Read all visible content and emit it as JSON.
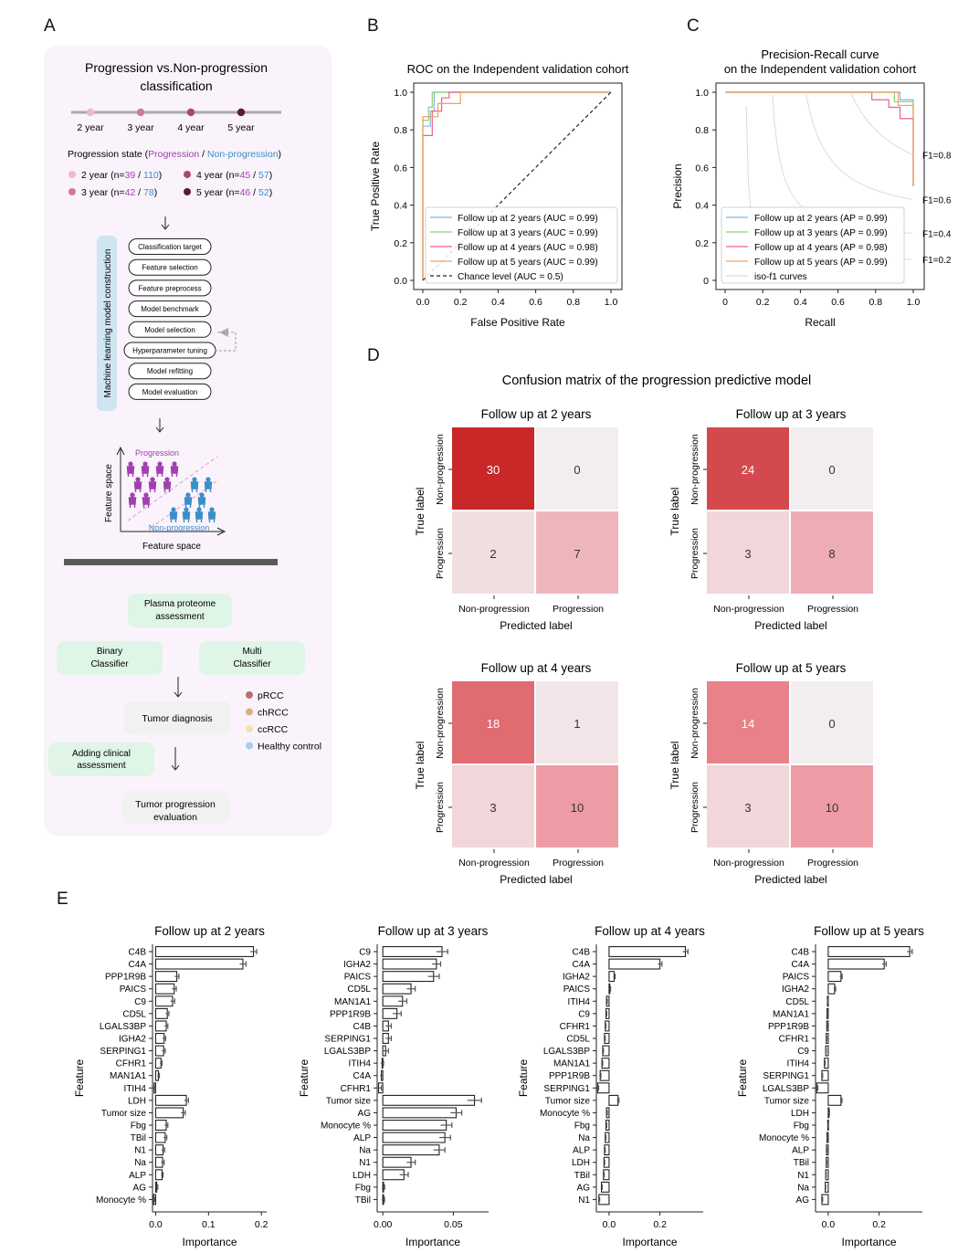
{
  "panel_labels": {
    "a": "A",
    "b": "B",
    "c": "C",
    "d": "D",
    "e": "E"
  },
  "panel_a": {
    "title_line1": "Progression vs.Non-progression",
    "title_line2": "classification",
    "timeline": [
      "2 year",
      "3 year",
      "4 year",
      "5 year"
    ],
    "timeline_colors": [
      "#f2b8c8",
      "#d17a98",
      "#a8496a",
      "#5c1a32"
    ],
    "state_prefix": "Progression state (",
    "state_prog": "Progression",
    "state_sep": " / ",
    "state_nonprog": "Non-progression",
    "state_suffix": ")",
    "prog_color": "#a040b0",
    "nonprog_color": "#3a8fc8",
    "counts": [
      {
        "label": "2 year (n=",
        "prog": "39",
        "nonprog": "110"
      },
      {
        "label": "3 year (n=",
        "prog": "42",
        "nonprog": "78"
      },
      {
        "label": "4 year (n=",
        "prog": "45",
        "nonprog": "57"
      },
      {
        "label": "5 year (n=",
        "prog": "46",
        "nonprog": "52"
      }
    ],
    "ml_label": "Machine learning model construction",
    "steps": [
      "Classification target",
      "Feature selection",
      "Feature preprocess",
      "Model benchmark",
      "Model selection",
      "Hyperparameter tuning",
      "Model refitting",
      "Model evaluation"
    ],
    "feature_space_y": "Feature space",
    "feature_space_x": "Feature space",
    "progression_label": "Progression",
    "nonprogression_label": "Non-progression",
    "flow": {
      "plasma": [
        "Plasma proteome",
        "assessment"
      ],
      "binary": [
        "Binary",
        "Classifier"
      ],
      "multi": [
        "Multi",
        "Classifier"
      ],
      "diagnosis": "Tumor diagnosis",
      "clinical": [
        "Adding clinical",
        "assessment"
      ],
      "evaluation": [
        "Tumor progression",
        "evaluation"
      ]
    },
    "legend": [
      {
        "label": "pRCC",
        "color": "#b87078"
      },
      {
        "label": "chRCC",
        "color": "#d8b088"
      },
      {
        "label": "ccRCC",
        "color": "#f4e0b0"
      },
      {
        "label": "Healthy control",
        "color": "#a8d0e8"
      }
    ]
  },
  "chart_data": [
    {
      "panel": "B",
      "type": "line",
      "title": "ROC on the Independent validation cohort",
      "xlabel": "False Positive Rate",
      "ylabel": "True Positive Rate",
      "xlim": [
        0,
        1
      ],
      "ylim": [
        0,
        1
      ],
      "ticks": [
        "0.0",
        "0.2",
        "0.4",
        "0.6",
        "0.8",
        "1.0"
      ],
      "legend_position": "lower right",
      "series": [
        {
          "name": "Follow up at 2 years (AUC = 0.99)",
          "color": "#7cb8e0",
          "points": [
            [
              0,
              0
            ],
            [
              0,
              0.82
            ],
            [
              0.04,
              0.82
            ],
            [
              0.04,
              0.9
            ],
            [
              0.06,
              0.9
            ],
            [
              0.06,
              1
            ],
            [
              1,
              1
            ]
          ]
        },
        {
          "name": "Follow up at 3 years (AUC = 0.99)",
          "color": "#90d070",
          "points": [
            [
              0,
              0
            ],
            [
              0,
              0.85
            ],
            [
              0.03,
              0.85
            ],
            [
              0.03,
              0.92
            ],
            [
              0.05,
              0.92
            ],
            [
              0.05,
              1
            ],
            [
              1,
              1
            ]
          ]
        },
        {
          "name": "Follow up at 4 years (AUC = 0.98)",
          "color": "#f06080",
          "points": [
            [
              0,
              0
            ],
            [
              0,
              0.77
            ],
            [
              0.05,
              0.77
            ],
            [
              0.05,
              0.9
            ],
            [
              0.1,
              0.9
            ],
            [
              0.1,
              0.97
            ],
            [
              0.14,
              0.97
            ],
            [
              0.14,
              1
            ],
            [
              1,
              1
            ]
          ]
        },
        {
          "name": "Follow up at 5 years (AUC = 0.99)",
          "color": "#f4a060",
          "points": [
            [
              0,
              0
            ],
            [
              0,
              0.87
            ],
            [
              0.08,
              0.87
            ],
            [
              0.08,
              0.94
            ],
            [
              0.2,
              0.94
            ],
            [
              0.2,
              1
            ],
            [
              1,
              1
            ]
          ]
        },
        {
          "name": "Chance level (AUC = 0.5)",
          "color": "#222222",
          "dashed": true,
          "points": [
            [
              0,
              0
            ],
            [
              1,
              1
            ]
          ]
        }
      ]
    },
    {
      "panel": "C",
      "type": "line",
      "title_line1": "Precision-Recall curve",
      "title_line2": "on the Independent validation cohort",
      "xlabel": "Recall",
      "ylabel": "Precision",
      "xlim": [
        0,
        1
      ],
      "ylim": [
        0,
        1
      ],
      "ticks": [
        "0",
        "0.2",
        "0.4",
        "0.6",
        "0.8",
        "1.0"
      ],
      "yticks": [
        "0",
        "0.2",
        "0.4",
        "0.6",
        "0.8",
        "1.0"
      ],
      "iso_f1": [
        0.2,
        0.4,
        0.6,
        0.8
      ],
      "iso_labels": [
        "F1=0.2",
        "F1=0.4",
        "F1=0.6",
        "F1=0.8"
      ],
      "legend_position": "lower right",
      "series": [
        {
          "name": "Follow up at 2 years (AP = 0.99)",
          "color": "#7cb8e0",
          "points": [
            [
              0,
              1
            ],
            [
              0.93,
              1
            ],
            [
              0.93,
              0.96
            ],
            [
              1,
              0.96
            ],
            [
              1,
              0.5
            ]
          ]
        },
        {
          "name": "Follow up at 3 years (AP = 0.99)",
          "color": "#90d070",
          "points": [
            [
              0,
              1
            ],
            [
              0.9,
              1
            ],
            [
              0.9,
              0.95
            ],
            [
              1,
              0.95
            ],
            [
              1,
              0.5
            ]
          ]
        },
        {
          "name": "Follow up at 4 years (AP = 0.98)",
          "color": "#f06080",
          "points": [
            [
              0,
              1
            ],
            [
              0.78,
              1
            ],
            [
              0.78,
              0.96
            ],
            [
              0.87,
              0.96
            ],
            [
              0.87,
              0.92
            ],
            [
              0.93,
              0.92
            ],
            [
              0.93,
              0.86
            ],
            [
              1,
              0.86
            ],
            [
              1,
              0.5
            ]
          ]
        },
        {
          "name": "Follow up at 5 years (AP = 0.99)",
          "color": "#f4a060",
          "points": [
            [
              0,
              1
            ],
            [
              0.92,
              1
            ],
            [
              0.92,
              0.93
            ],
            [
              1,
              0.93
            ],
            [
              1,
              0.5
            ]
          ]
        },
        {
          "name": "iso-f1 curves",
          "color": "#d8d8d8"
        }
      ]
    },
    {
      "panel": "D",
      "type": "heatmap",
      "title": "Confusion matrix of the progression predictive model",
      "xlabel": "Predicted label",
      "ylabel": "True label",
      "classes": [
        "Non-progression",
        "Progression"
      ],
      "matrices": [
        {
          "title": "Follow up at 2 years",
          "values": [
            [
              30,
              0
            ],
            [
              2,
              7
            ]
          ]
        },
        {
          "title": "Follow up at 3 years",
          "values": [
            [
              24,
              0
            ],
            [
              3,
              8
            ]
          ]
        },
        {
          "title": "Follow up at 4 years",
          "values": [
            [
              18,
              1
            ],
            [
              3,
              10
            ]
          ]
        },
        {
          "title": "Follow up at 5 years",
          "values": [
            [
              14,
              0
            ],
            [
              3,
              10
            ]
          ]
        }
      ]
    },
    {
      "panel": "E",
      "type": "bar",
      "xlabel": "Importance",
      "ylabel": "Feature",
      "subplots": [
        {
          "title": "Follow up at 2 years",
          "xlim": [
            -0.006,
            0.21
          ],
          "xticks": [
            0,
            0.1,
            0.2
          ],
          "xtick_labels": [
            "0.0",
            "0.1",
            "0.2"
          ],
          "features": [
            "C4B",
            "C4A",
            "PPP1R9B",
            "PAICS",
            "C9",
            "CD5L",
            "LGALS3BP",
            "IGHA2",
            "SERPING1",
            "CFHR1",
            "MAN1A1",
            "ITIH4",
            "LDH",
            "Tumor size",
            "Fbg",
            "TBil",
            "N1",
            "Na",
            "ALP",
            "AG",
            "Monocyte %"
          ],
          "values": [
            0.185,
            0.165,
            0.04,
            0.035,
            0.032,
            0.022,
            0.02,
            0.016,
            0.015,
            0.01,
            0.005,
            -0.003,
            0.058,
            0.052,
            0.02,
            0.018,
            0.014,
            0.013,
            0.012,
            0.002,
            -0.004
          ],
          "errors": [
            0.006,
            0.006,
            0.004,
            0.004,
            0.004,
            0.003,
            0.003,
            0.003,
            0.003,
            0.002,
            0.002,
            0.002,
            0.004,
            0.004,
            0.003,
            0.003,
            0.003,
            0.003,
            0.002,
            0.002,
            0.002
          ]
        },
        {
          "title": "Follow up at 3 years",
          "xlim": [
            -0.004,
            0.075
          ],
          "xticks": [
            0,
            0.05
          ],
          "xtick_labels": [
            "0.00",
            "0.05"
          ],
          "features": [
            "C9",
            "IGHA2",
            "PAICS",
            "CD5L",
            "MAN1A1",
            "PPP1R9B",
            "C4B",
            "SERPING1",
            "LGALS3BP",
            "ITIH4",
            "C4A",
            "CFHR1",
            "Tumor size",
            "AG",
            "Monocyte %",
            "ALP",
            "Na",
            "N1",
            "LDH",
            "Fbg",
            "TBil"
          ],
          "values": [
            0.042,
            0.038,
            0.036,
            0.02,
            0.014,
            0.01,
            0.004,
            0.004,
            0.002,
            -0.0005,
            -0.001,
            -0.003,
            0.065,
            0.052,
            0.045,
            0.044,
            0.04,
            0.02,
            0.015,
            0.0003,
            0.0002
          ],
          "errors": [
            0.004,
            0.003,
            0.004,
            0.003,
            0.003,
            0.003,
            0.002,
            0.002,
            0.002,
            0.001,
            0.001,
            0.002,
            0.005,
            0.004,
            0.004,
            0.004,
            0.004,
            0.003,
            0.003,
            0.001,
            0.001
          ]
        },
        {
          "title": "Follow up at 4 years",
          "xlim": [
            -0.05,
            0.37
          ],
          "xticks": [
            0,
            0.2
          ],
          "xtick_labels": [
            "0.0",
            "0.2"
          ],
          "features": [
            "C4B",
            "C4A",
            "IGHA2",
            "PAICS",
            "ITIH4",
            "C9",
            "CFHR1",
            "CD5L",
            "LGALS3BP",
            "MAN1A1",
            "PPP1R9B",
            "SERPING1",
            "Tumor size",
            "Monocyte %",
            "Fbg",
            "Na",
            "ALP",
            "LDH",
            "TBil",
            "AG",
            "N1"
          ],
          "values": [
            0.3,
            0.2,
            0.02,
            0.003,
            -0.01,
            -0.012,
            -0.015,
            -0.018,
            -0.025,
            -0.028,
            -0.035,
            -0.045,
            0.035,
            -0.01,
            -0.012,
            -0.015,
            -0.018,
            -0.02,
            -0.022,
            -0.03,
            -0.04
          ],
          "errors": [
            0.01,
            0.008,
            0.004,
            0.003,
            0.003,
            0.003,
            0.003,
            0.003,
            0.003,
            0.003,
            0.003,
            0.004,
            0.004,
            0.003,
            0.003,
            0.003,
            0.003,
            0.003,
            0.003,
            0.003,
            0.003
          ]
        },
        {
          "title": "Follow up at 5 years",
          "xlim": [
            -0.05,
            0.37
          ],
          "xticks": [
            0,
            0.2
          ],
          "xtick_labels": [
            "0.0",
            "0.2"
          ],
          "features": [
            "C4B",
            "C4A",
            "PAICS",
            "IGHA2",
            "CD5L",
            "MAN1A1",
            "PPP1R9B",
            "CFHR1",
            "C9",
            "ITIH4",
            "SERPING1",
            "LGALS3BP",
            "Tumor size",
            "LDH",
            "Fbg",
            "Monocyte %",
            "ALP",
            "TBil",
            "N1",
            "Na",
            "AG"
          ],
          "values": [
            0.32,
            0.22,
            0.05,
            0.025,
            -0.003,
            -0.005,
            -0.006,
            -0.008,
            -0.01,
            -0.015,
            -0.025,
            -0.045,
            0.05,
            0.003,
            -0.002,
            -0.005,
            -0.007,
            -0.008,
            -0.01,
            -0.012,
            -0.025
          ],
          "errors": [
            0.01,
            0.008,
            0.005,
            0.004,
            0.002,
            0.002,
            0.002,
            0.002,
            0.002,
            0.003,
            0.003,
            0.004,
            0.004,
            0.002,
            0.002,
            0.002,
            0.002,
            0.002,
            0.002,
            0.002,
            0.003
          ]
        }
      ]
    }
  ]
}
